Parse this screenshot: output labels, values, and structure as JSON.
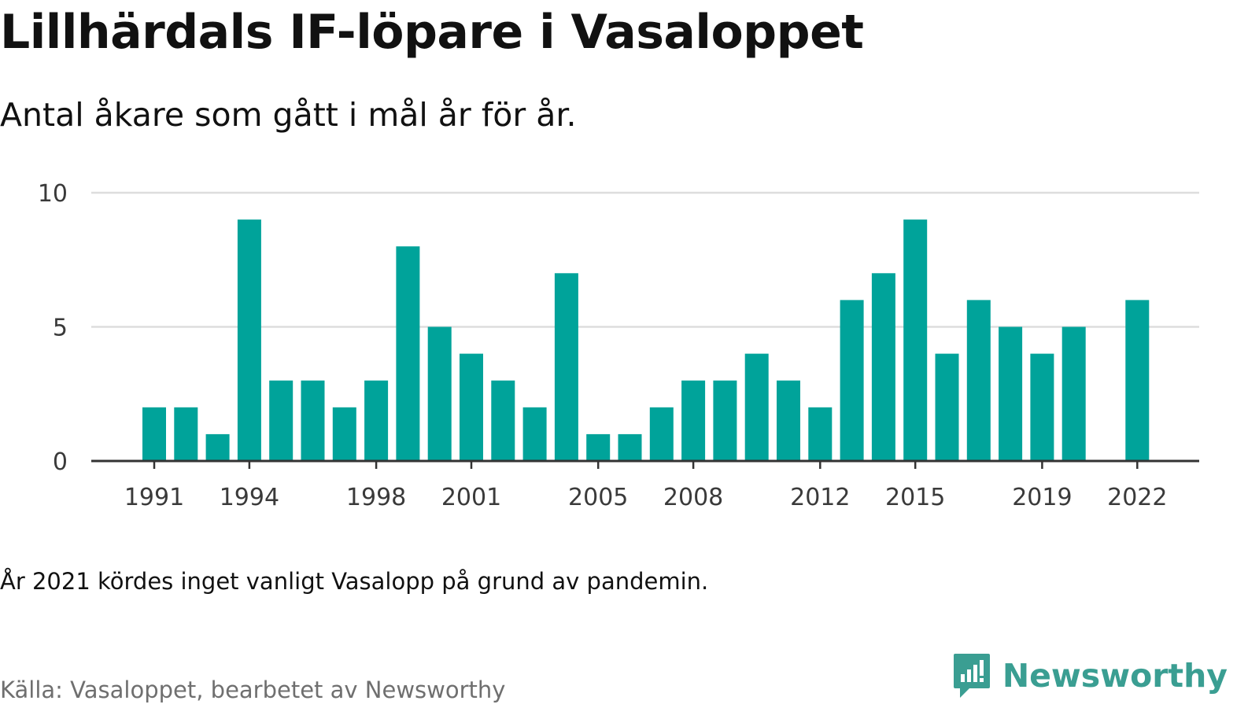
{
  "header": {
    "title": "Lillhärdals IF-löpare i Vasaloppet",
    "subtitle": "Antal åkare som gått i mål år för år."
  },
  "footer": {
    "note": "År 2021 kördes inget vanligt Vasalopp på grund av pandemin.",
    "source": "Källa: Vasaloppet, bearbetet av Newsworthy",
    "logo_text": "Newsworthy"
  },
  "colors": {
    "bar": "#00a39a",
    "grid": "#dddddd",
    "axis": "#333333",
    "logo": "#3a9e92"
  },
  "chart_data": {
    "type": "bar",
    "categories": [
      "1991",
      "1992",
      "1993",
      "1994",
      "1995",
      "1996",
      "1997",
      "1998",
      "1999",
      "2000",
      "2001",
      "2002",
      "2003",
      "2004",
      "2005",
      "2006",
      "2007",
      "2008",
      "2009",
      "2010",
      "2011",
      "2012",
      "2013",
      "2014",
      "2015",
      "2016",
      "2017",
      "2018",
      "2019",
      "2020",
      "2021",
      "2022"
    ],
    "values": [
      2,
      2,
      1,
      9,
      3,
      3,
      2,
      3,
      8,
      5,
      4,
      3,
      2,
      7,
      1,
      1,
      2,
      3,
      3,
      4,
      3,
      2,
      6,
      7,
      9,
      4,
      6,
      5,
      4,
      5,
      null,
      6
    ],
    "x_tick_labels": [
      "1991",
      "1994",
      "1998",
      "2001",
      "2005",
      "2008",
      "2012",
      "2015",
      "2019",
      "2022"
    ],
    "y_ticks": [
      0,
      5,
      10
    ],
    "ylim": [
      0,
      10
    ],
    "grid": true,
    "legend": "none"
  }
}
